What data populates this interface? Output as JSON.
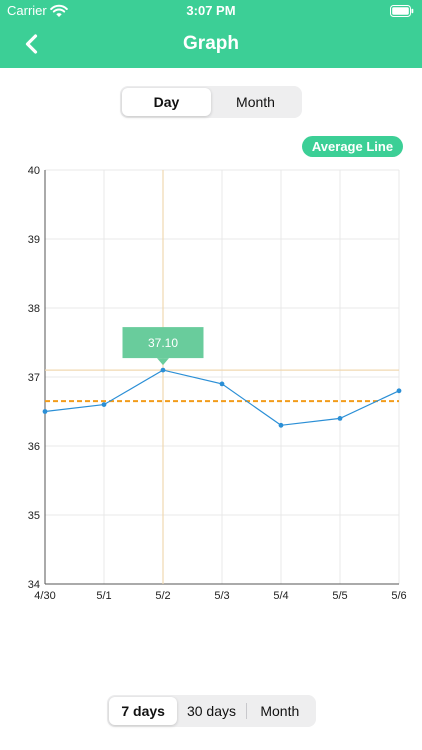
{
  "status_bar": {
    "carrier": "Carrier",
    "time": "3:07 PM",
    "icons": [
      "wifi-icon",
      "battery-icon"
    ]
  },
  "nav": {
    "title": "Graph",
    "back_icon": "chevron-left-icon"
  },
  "top_segment": {
    "options": [
      "Day",
      "Month"
    ],
    "selected": "Day"
  },
  "average_badge": {
    "label": "Average Line"
  },
  "chart_data": {
    "type": "line",
    "categories": [
      "4/30",
      "5/1",
      "5/2",
      "5/3",
      "5/4",
      "5/5",
      "5/6"
    ],
    "values": [
      36.5,
      36.6,
      37.1,
      36.9,
      36.3,
      36.4,
      36.8
    ],
    "ylim": [
      34,
      40
    ],
    "yticks": [
      34,
      35,
      36,
      37,
      38,
      39,
      40
    ],
    "average_value": 36.65,
    "highlighted_category": "5/2",
    "tooltip_value": "37.10",
    "colors": {
      "line": "#2b8fd6",
      "average": "#f29c1a",
      "grid": "#e8e8e8",
      "crosshair": "#f1d8b0",
      "tooltip": "#69cc9c"
    },
    "grid": true
  },
  "bottom_segment": {
    "options": [
      "7 days",
      "30 days",
      "Month"
    ],
    "selected": "7 days"
  },
  "colors": {
    "accent": "#3ccf96",
    "white": "#ffffff"
  }
}
